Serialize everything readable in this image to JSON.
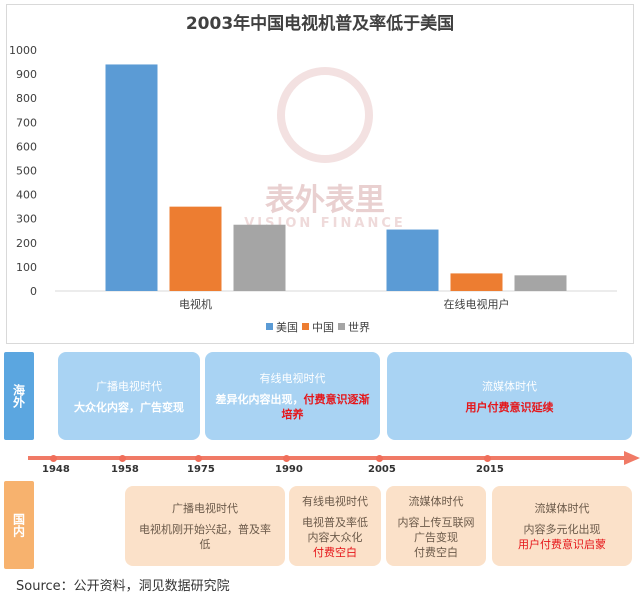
{
  "chart_data": {
    "type": "bar",
    "title": "2003年中国电视机普及率低于美国",
    "categories": [
      "电视机",
      "在线电视用户"
    ],
    "series": [
      {
        "name": "美国",
        "color": "#5b9bd5",
        "values": [
          940,
          255
        ]
      },
      {
        "name": "中国",
        "color": "#ed7d31",
        "values": [
          350,
          73
        ]
      },
      {
        "name": "世界",
        "color": "#a5a5a5",
        "values": [
          275,
          65
        ]
      }
    ],
    "ylim": [
      0,
      1000
    ],
    "yticks": [
      0,
      100,
      200,
      300,
      400,
      500,
      600,
      700,
      800,
      900,
      1000
    ],
    "grid": false,
    "legend": "bottom-center"
  },
  "watermark": {
    "text": "表外表里",
    "sub": "VISION FINANCE"
  },
  "timeline": {
    "overseas_label": "海外",
    "domestic_label": "国内",
    "years": [
      "1948",
      "1958",
      "1975",
      "1990",
      "2005",
      "2015"
    ],
    "overseas": [
      {
        "title": "广播电视时代",
        "desc": "大众化内容，广告变现",
        "highlight": ""
      },
      {
        "title": "有线电视时代",
        "desc": "差异化内容出现，",
        "highlight": "付费意识逐渐",
        "highlight2": "培养"
      },
      {
        "title": "流媒体时代",
        "desc": "",
        "highlight": "用户付费意识延续"
      }
    ],
    "domestic": [
      {
        "title": "广播电视时代",
        "desc": "电视机刚开始兴起，普及率",
        "desc2": "低",
        "highlight": ""
      },
      {
        "title": "有线电视时代",
        "desc": "电视普及率低",
        "desc2": "内容大众化",
        "highlight": "付费空白"
      },
      {
        "title": "流媒体时代",
        "desc": "内容上传互联网",
        "desc2": "广告变现",
        "desc3": "付费空白"
      },
      {
        "title": "流媒体时代",
        "desc": "内容多元化出现",
        "highlight": "用户付费意识启蒙"
      }
    ]
  },
  "source": "Source：公开资料，洞见数据研究院"
}
